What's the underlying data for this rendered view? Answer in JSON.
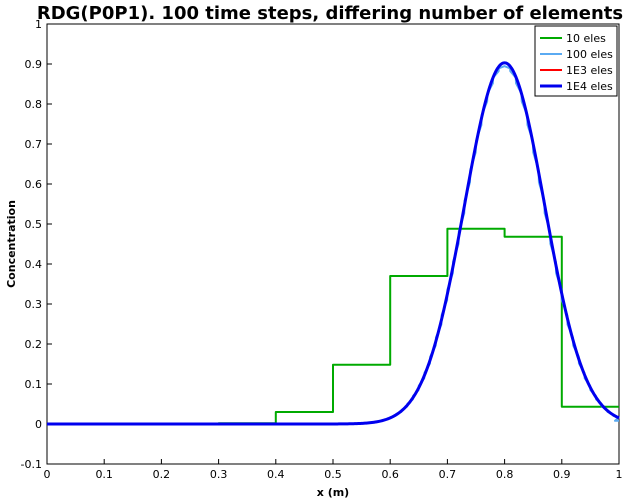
{
  "chart_data": {
    "type": "line",
    "title": "RDG(P0P1).  100 time steps, differing number of elements",
    "xlabel": "x (m)",
    "ylabel": "Concentration",
    "xlim": [
      0,
      1
    ],
    "ylim": [
      -0.1,
      1
    ],
    "xticks": [
      "0",
      "0.1",
      "0.2",
      "0.3",
      "0.4",
      "0.5",
      "0.6",
      "0.7",
      "0.8",
      "0.9",
      "1"
    ],
    "yticks": [
      "-0.1",
      "0",
      "0.1",
      "0.2",
      "0.3",
      "0.4",
      "0.5",
      "0.6",
      "0.7",
      "0.8",
      "0.9",
      "1"
    ],
    "grid": false,
    "legend_position": "top-right",
    "series": [
      {
        "name": "10 eles",
        "color": "#00aa00",
        "kind": "step",
        "steps": [
          {
            "x0": 0.0,
            "x1": 0.3,
            "y": 0.0
          },
          {
            "x0": 0.3,
            "x1": 0.4,
            "y": 0.002
          },
          {
            "x0": 0.4,
            "x1": 0.5,
            "y": 0.03
          },
          {
            "x0": 0.5,
            "x1": 0.6,
            "y": 0.148
          },
          {
            "x0": 0.6,
            "x1": 0.7,
            "y": 0.37
          },
          {
            "x0": 0.7,
            "x1": 0.8,
            "y": 0.488
          },
          {
            "x0": 0.8,
            "x1": 0.9,
            "y": 0.468
          },
          {
            "x0": 0.9,
            "x1": 1.0,
            "y": 0.043
          }
        ]
      },
      {
        "name": "100 eles",
        "color": "#5aaaf2",
        "kind": "gaussian-step",
        "center": 0.8,
        "amplitude": 0.895,
        "sigma": 0.07,
        "elements": 100,
        "end_drop": 0.008
      },
      {
        "name": "1E3 eles",
        "color": "#ff0000",
        "kind": "gaussian",
        "center": 0.8,
        "amplitude": 0.903,
        "sigma": 0.07
      },
      {
        "name": "1E4 eles",
        "color": "#0000ee",
        "kind": "gaussian",
        "center": 0.8,
        "amplitude": 0.903,
        "sigma": 0.07
      }
    ]
  }
}
